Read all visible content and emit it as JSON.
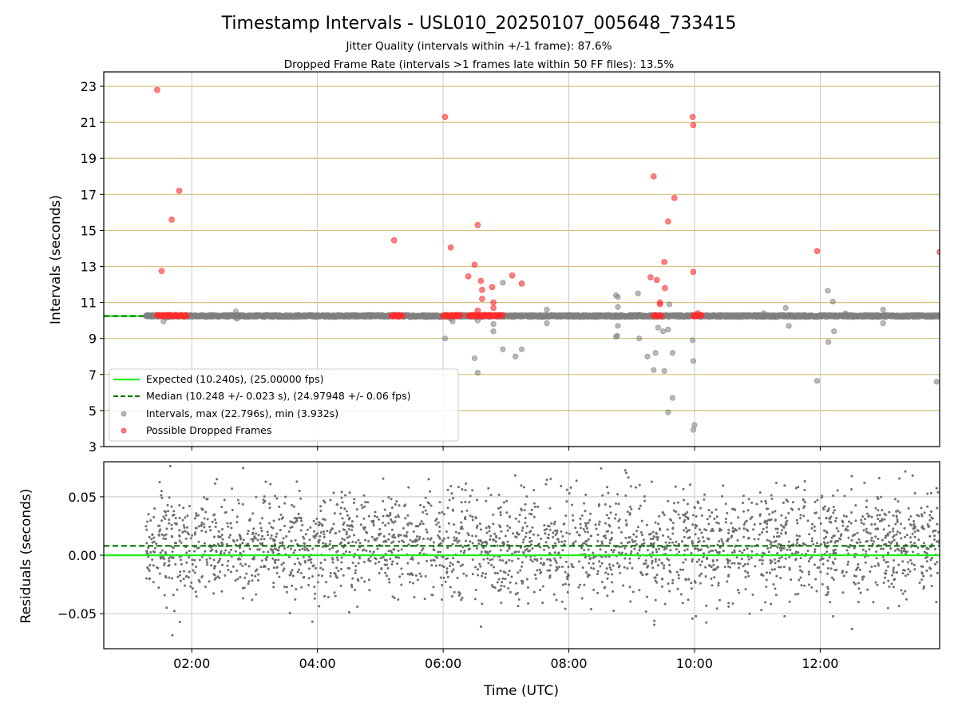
{
  "chart_data": [
    {
      "type": "scatter",
      "panel": "top",
      "title": "Timestamp Intervals - USL010_20250107_005648_733415",
      "subtitle_lines": [
        "Jitter Quality (intervals within +/-1 frame): 87.6%",
        "Dropped Frame Rate (intervals >1 frames late within 50 FF files): 13.5%"
      ],
      "ylabel": "Intervals (seconds)",
      "xlim": [
        0.6,
        13.9
      ],
      "ylim": [
        3,
        23.8
      ],
      "y_ticks": [
        3,
        5,
        7,
        9,
        11,
        13,
        15,
        17,
        19,
        21,
        23
      ],
      "grid": true,
      "legend_placement": "lower-left",
      "colors": {
        "expected": "#22ee22",
        "median": "#007700",
        "intervals": "#808080",
        "dropped": "#ff2b2b",
        "hgrid": "#d4c07a",
        "vgrid": "#c8c8c8"
      },
      "expected_line": {
        "label": "Expected (10.240s), (25.00000 fps)",
        "y": 10.24
      },
      "median_line": {
        "label": "Median (10.248 +/- 0.023 s), (24.97948 +/- 0.06 fps)",
        "y": 10.248
      },
      "series": [
        {
          "name": "Intervals, max (22.796s), min (3.932s)",
          "baseline_band": {
            "x_start": 1.27,
            "x_end": 13.9,
            "y": 10.25
          },
          "outliers": [
            [
              1.55,
              9.95
            ],
            [
              1.6,
              10.15
            ],
            [
              2.7,
              10.5
            ],
            [
              2.72,
              10.1
            ],
            [
              6.03,
              9.0
            ],
            [
              6.12,
              10.1
            ],
            [
              6.15,
              9.95
            ],
            [
              6.5,
              7.9
            ],
            [
              6.55,
              7.1
            ],
            [
              6.55,
              10.0
            ],
            [
              6.8,
              9.8
            ],
            [
              6.8,
              9.4
            ],
            [
              6.95,
              8.4
            ],
            [
              6.95,
              12.1
            ],
            [
              7.15,
              8.0
            ],
            [
              7.25,
              8.4
            ],
            [
              7.65,
              10.6
            ],
            [
              7.65,
              9.85
            ],
            [
              8.75,
              11.4
            ],
            [
              8.75,
              9.1
            ],
            [
              8.77,
              9.15
            ],
            [
              8.78,
              11.3
            ],
            [
              8.78,
              10.75
            ],
            [
              8.78,
              9.7
            ],
            [
              9.1,
              11.5
            ],
            [
              9.12,
              9.0
            ],
            [
              9.25,
              8.0
            ],
            [
              9.35,
              7.25
            ],
            [
              9.38,
              8.2
            ],
            [
              9.42,
              9.6
            ],
            [
              9.5,
              9.4
            ],
            [
              9.52,
              7.2
            ],
            [
              9.58,
              4.9
            ],
            [
              9.58,
              9.5
            ],
            [
              9.6,
              10.9
            ],
            [
              9.65,
              5.7
            ],
            [
              9.65,
              8.2
            ],
            [
              9.97,
              8.9
            ],
            [
              9.98,
              7.75
            ],
            [
              9.98,
              3.93
            ],
            [
              10.0,
              4.2
            ],
            [
              10.5,
              10.3
            ],
            [
              11.1,
              10.4
            ],
            [
              11.45,
              10.7
            ],
            [
              11.5,
              9.7
            ],
            [
              11.95,
              6.65
            ],
            [
              12.12,
              11.65
            ],
            [
              12.13,
              8.8
            ],
            [
              12.2,
              11.05
            ],
            [
              12.22,
              9.4
            ],
            [
              12.4,
              10.4
            ],
            [
              13.0,
              10.6
            ],
            [
              13.0,
              9.85
            ],
            [
              13.85,
              6.6
            ]
          ]
        },
        {
          "name": "Possible Dropped Frames",
          "cluster_segments": [
            [
              1.45,
              1.92
            ],
            [
              5.18,
              5.35
            ],
            [
              6.0,
              6.28
            ],
            [
              6.4,
              6.95
            ],
            [
              9.35,
              9.48
            ],
            [
              9.98,
              10.12
            ]
          ],
          "cluster_y": 10.27,
          "points": [
            [
              1.45,
              22.8
            ],
            [
              1.52,
              12.75
            ],
            [
              1.68,
              15.6
            ],
            [
              1.8,
              17.2
            ],
            [
              5.22,
              14.45
            ],
            [
              6.03,
              21.3
            ],
            [
              6.12,
              14.05
            ],
            [
              6.4,
              12.45
            ],
            [
              6.5,
              13.1
            ],
            [
              6.55,
              15.3
            ],
            [
              6.55,
              10.55
            ],
            [
              6.6,
              12.2
            ],
            [
              6.62,
              11.2
            ],
            [
              6.62,
              11.7
            ],
            [
              6.78,
              11.85
            ],
            [
              6.8,
              11.0
            ],
            [
              6.8,
              10.7
            ],
            [
              7.1,
              12.5
            ],
            [
              7.25,
              12.05
            ],
            [
              9.3,
              12.4
            ],
            [
              9.35,
              18.0
            ],
            [
              9.4,
              12.25
            ],
            [
              9.45,
              11.0
            ],
            [
              9.45,
              10.9
            ],
            [
              9.52,
              13.25
            ],
            [
              9.53,
              11.8
            ],
            [
              9.58,
              15.5
            ],
            [
              9.68,
              16.8
            ],
            [
              9.97,
              21.3
            ],
            [
              9.98,
              20.85
            ],
            [
              9.98,
              12.7
            ],
            [
              10.05,
              10.4
            ],
            [
              11.95,
              13.85
            ],
            [
              13.9,
              13.8
            ]
          ]
        }
      ]
    },
    {
      "type": "scatter",
      "panel": "bottom",
      "xlabel": "Time (UTC)",
      "ylabel": "Residuals (seconds)",
      "xlim": [
        0.6,
        13.9
      ],
      "ylim": [
        -0.08,
        0.08
      ],
      "x_ticks": [
        {
          "value": 2,
          "label": "02:00"
        },
        {
          "value": 4,
          "label": "04:00"
        },
        {
          "value": 6,
          "label": "06:00"
        },
        {
          "value": 8,
          "label": "08:00"
        },
        {
          "value": 10,
          "label": "10:00"
        },
        {
          "value": 12,
          "label": "12:00"
        }
      ],
      "y_ticks": [
        {
          "value": 0.05,
          "label": "0.05"
        },
        {
          "value": 0.0,
          "label": "0.00"
        },
        {
          "value": -0.05,
          "label": "−0.05"
        }
      ],
      "grid": true,
      "expected_line": {
        "y": 0.0
      },
      "median_line": {
        "y": 0.008
      },
      "residuals": {
        "x_start": 1.27,
        "x_end": 13.9,
        "count": 2600,
        "mean": 0.008,
        "std": 0.023,
        "min": -0.075,
        "max": 0.08
      }
    }
  ]
}
